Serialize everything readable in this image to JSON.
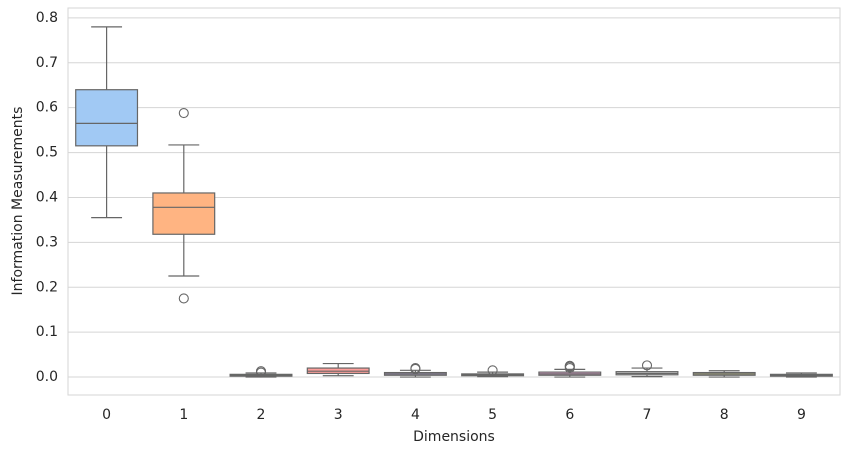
{
  "chart_data": {
    "type": "box",
    "x_label": "Dimensions",
    "y_label": "Information Measurements",
    "categories": [
      "0",
      "1",
      "2",
      "3",
      "4",
      "5",
      "6",
      "7",
      "8",
      "9"
    ],
    "boxes": [
      {
        "color": "#a1c9f4",
        "low": 0.355,
        "q1": 0.515,
        "median": 0.565,
        "q3": 0.64,
        "high": 0.78,
        "outliers": []
      },
      {
        "color": "#ffb482",
        "low": 0.225,
        "q1": 0.318,
        "median": 0.378,
        "q3": 0.41,
        "high": 0.517,
        "outliers": [
          0.588,
          0.175
        ]
      },
      {
        "color": "#8de5a1",
        "low": 0.0,
        "q1": 0.002,
        "median": 0.004,
        "q3": 0.006,
        "high": 0.009,
        "outliers": [
          0.013,
          0.01
        ]
      },
      {
        "color": "#ff9f9b",
        "low": 0.003,
        "q1": 0.008,
        "median": 0.013,
        "q3": 0.02,
        "high": 0.03,
        "outliers": []
      },
      {
        "color": "#d0bbff",
        "low": 0.0,
        "q1": 0.004,
        "median": 0.007,
        "q3": 0.01,
        "high": 0.015,
        "outliers": [
          0.018,
          0.02
        ]
      },
      {
        "color": "#debb9b",
        "low": 0.001,
        "q1": 0.003,
        "median": 0.005,
        "q3": 0.007,
        "high": 0.011,
        "outliers": [
          0.015
        ]
      },
      {
        "color": "#fab0e4",
        "low": 0.0,
        "q1": 0.004,
        "median": 0.007,
        "q3": 0.011,
        "high": 0.017,
        "outliers": [
          0.02,
          0.023,
          0.025
        ]
      },
      {
        "color": "#cfcfcf",
        "low": 0.001,
        "q1": 0.005,
        "median": 0.008,
        "q3": 0.012,
        "high": 0.02,
        "outliers": [
          0.026
        ]
      },
      {
        "color": "#fffea3",
        "low": 0.0,
        "q1": 0.004,
        "median": 0.007,
        "q3": 0.01,
        "high": 0.014,
        "outliers": []
      },
      {
        "color": "#b9f2f0",
        "low": 0.0,
        "q1": 0.002,
        "median": 0.004,
        "q3": 0.006,
        "high": 0.009,
        "outliers": []
      }
    ],
    "ylim": [
      -0.04,
      0.822
    ],
    "yticks": [
      {
        "value": 0,
        "label": "0.0"
      },
      0.1,
      0.2,
      0.3,
      0.4,
      0.5,
      0.6,
      0.7,
      0.8
    ],
    "grid": true
  }
}
